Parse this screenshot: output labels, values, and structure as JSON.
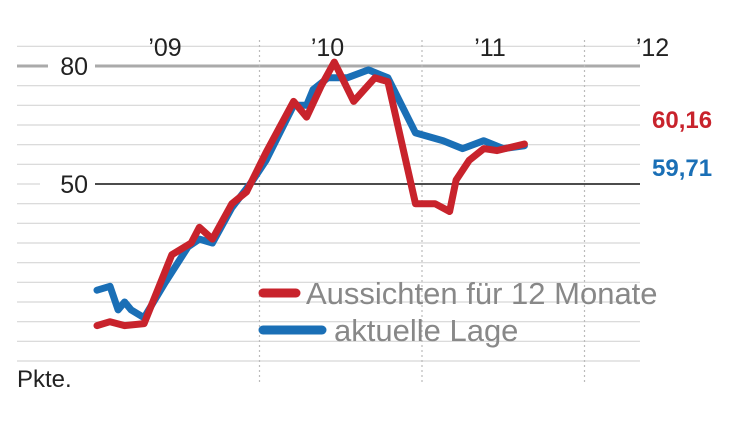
{
  "chart_data": {
    "type": "line",
    "unit_label": "Pkte.",
    "y_ticks": [
      80,
      50
    ],
    "ylim": [
      0,
      80
    ],
    "year_labels": [
      "’09",
      "’10",
      "’11",
      "’12"
    ],
    "series": [
      {
        "name": "Aussichten für 12 Monate",
        "color": "#c8232c",
        "end_label": "60,16",
        "values": [
          [
            2009.0,
            14
          ],
          [
            2009.08,
            15
          ],
          [
            2009.17,
            14
          ],
          [
            2009.29,
            14.5
          ],
          [
            2009.46,
            32
          ],
          [
            2009.58,
            35
          ],
          [
            2009.63,
            39
          ],
          [
            2009.71,
            36
          ],
          [
            2009.83,
            45
          ],
          [
            2009.92,
            48
          ],
          [
            2010.04,
            58
          ],
          [
            2010.21,
            71
          ],
          [
            2010.29,
            67
          ],
          [
            2010.38,
            75
          ],
          [
            2010.46,
            81
          ],
          [
            2010.58,
            71
          ],
          [
            2010.71,
            77
          ],
          [
            2010.79,
            76
          ],
          [
            2010.96,
            45
          ],
          [
            2011.08,
            45
          ],
          [
            2011.17,
            43
          ],
          [
            2011.21,
            51
          ],
          [
            2011.29,
            56
          ],
          [
            2011.38,
            59
          ],
          [
            2011.46,
            58.5
          ],
          [
            2011.63,
            60.16
          ]
        ]
      },
      {
        "name": "aktuelle Lage",
        "color": "#1a6fb6",
        "end_label": "59,71",
        "values": [
          [
            2009.0,
            23
          ],
          [
            2009.08,
            24
          ],
          [
            2009.13,
            18
          ],
          [
            2009.17,
            20
          ],
          [
            2009.21,
            18
          ],
          [
            2009.29,
            16
          ],
          [
            2009.42,
            25
          ],
          [
            2009.56,
            34
          ],
          [
            2009.63,
            36
          ],
          [
            2009.71,
            35
          ],
          [
            2009.83,
            44
          ],
          [
            2009.96,
            51
          ],
          [
            2010.04,
            56
          ],
          [
            2010.21,
            70
          ],
          [
            2010.29,
            70
          ],
          [
            2010.33,
            74
          ],
          [
            2010.42,
            77
          ],
          [
            2010.54,
            77
          ],
          [
            2010.67,
            79
          ],
          [
            2010.79,
            77
          ],
          [
            2010.96,
            63
          ],
          [
            2011.13,
            61
          ],
          [
            2011.25,
            59
          ],
          [
            2011.38,
            61
          ],
          [
            2011.5,
            59
          ],
          [
            2011.63,
            59.71
          ]
        ]
      }
    ]
  }
}
